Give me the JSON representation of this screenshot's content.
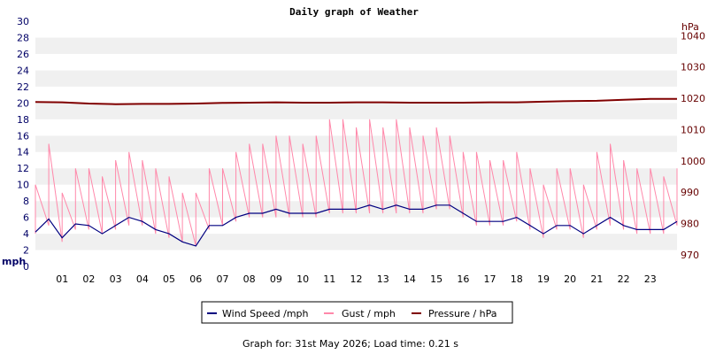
{
  "chart_data": {
    "type": "line",
    "title": "Daily graph of Weather",
    "left_axis": {
      "unit_label": "mph",
      "ylim": [
        0,
        30
      ],
      "ticks": [
        "0",
        "2",
        "4",
        "6",
        "8",
        "10",
        "12",
        "14",
        "16",
        "18",
        "20",
        "22",
        "24",
        "26",
        "28",
        "30"
      ]
    },
    "right_axis": {
      "unit_label": "hPa",
      "ylim": [
        966.3,
        1044.6
      ],
      "ticks": [
        "970",
        "980",
        "990",
        "1000",
        "1010",
        "1020",
        "1030",
        "1040"
      ]
    },
    "x_axis": {
      "xlim": [
        0,
        24
      ],
      "tick_labels": [
        "01",
        "02",
        "03",
        "04",
        "05",
        "06",
        "07",
        "08",
        "09",
        "10",
        "11",
        "12",
        "13",
        "14",
        "15",
        "16",
        "17",
        "18",
        "19",
        "20",
        "21",
        "22",
        "23"
      ]
    },
    "grid": "alternating horizontal bands",
    "legend_position": "bottom-center",
    "series": [
      {
        "name": "Wind Speed /mph",
        "axis": "left",
        "color": "#000080",
        "x": [
          0,
          0.5,
          1,
          1.5,
          2,
          2.5,
          3,
          3.5,
          4,
          4.5,
          5,
          5.5,
          6,
          6.5,
          7,
          7.5,
          8,
          8.5,
          9,
          9.5,
          10,
          10.5,
          11,
          11.5,
          12,
          12.5,
          13,
          13.5,
          14,
          14.5,
          15,
          15.5,
          16,
          16.5,
          17,
          17.5,
          18,
          18.5,
          19,
          19.5,
          20,
          20.5,
          21,
          21.5,
          22,
          22.5,
          23,
          23.5,
          24
        ],
        "y": [
          4.2,
          5.8,
          3.5,
          5.2,
          5.0,
          4.0,
          5.0,
          6.0,
          5.5,
          4.5,
          4.0,
          3.0,
          2.5,
          5.0,
          5.0,
          6.0,
          6.5,
          6.5,
          7.0,
          6.5,
          6.5,
          6.5,
          7.0,
          7.0,
          7.0,
          7.5,
          7.0,
          7.5,
          7.0,
          7.0,
          7.5,
          7.5,
          6.5,
          5.5,
          5.5,
          5.5,
          6.0,
          5.0,
          4.0,
          5.0,
          5.0,
          4.0,
          5.0,
          6.0,
          5.0,
          4.5,
          4.5,
          4.5,
          5.5
        ]
      },
      {
        "name": "Gust / mph",
        "axis": "left",
        "color": "#ff88aa",
        "x": [
          0,
          0.5,
          1,
          1.5,
          2,
          2.5,
          3,
          3.5,
          4,
          4.5,
          5,
          5.5,
          6,
          6.5,
          7,
          7.5,
          8,
          8.5,
          9,
          9.5,
          10,
          10.5,
          11,
          11.5,
          12,
          12.5,
          13,
          13.5,
          14,
          14.5,
          15,
          15.5,
          16,
          16.5,
          17,
          17.5,
          18,
          18.5,
          19,
          19.5,
          20,
          20.5,
          21,
          21.5,
          22,
          22.5,
          23,
          23.5,
          24
        ],
        "y_min": [
          4.0,
          5.0,
          3.0,
          4.5,
          4.5,
          4.0,
          4.5,
          5.0,
          5.0,
          4.0,
          3.5,
          3.0,
          2.5,
          4.5,
          5.0,
          5.5,
          6.0,
          6.0,
          6.0,
          6.0,
          6.0,
          6.0,
          6.5,
          6.5,
          6.5,
          6.5,
          6.5,
          6.5,
          6.5,
          6.5,
          7.0,
          7.0,
          6.0,
          5.0,
          5.0,
          5.0,
          5.5,
          4.5,
          3.5,
          4.5,
          4.5,
          3.5,
          4.5,
          5.0,
          4.5,
          4.0,
          4.0,
          4.0,
          5.0
        ],
        "y_max": [
          10.0,
          15.0,
          9.0,
          12.0,
          12.0,
          11.0,
          13.0,
          14.0,
          13.0,
          12.0,
          11.0,
          9.0,
          9.0,
          12.0,
          12.0,
          14.0,
          15.0,
          15.0,
          16.0,
          16.0,
          15.0,
          16.0,
          18.0,
          18.0,
          17.0,
          18.0,
          17.0,
          18.0,
          17.0,
          16.0,
          17.0,
          16.0,
          14.0,
          14.0,
          13.0,
          13.0,
          14.0,
          12.0,
          10.0,
          12.0,
          12.0,
          10.0,
          14.0,
          15.0,
          13.0,
          12.0,
          12.0,
          11.0,
          12.0
        ]
      },
      {
        "name": "Pressure / hPa",
        "axis": "right",
        "color": "#800000",
        "x": [
          0,
          1,
          2,
          3,
          4,
          5,
          6,
          7,
          8,
          9,
          10,
          11,
          12,
          13,
          14,
          15,
          16,
          17,
          18,
          19,
          20,
          21,
          22,
          23,
          24
        ],
        "y": [
          1018.8,
          1018.7,
          1018.3,
          1018.1,
          1018.2,
          1018.2,
          1018.3,
          1018.5,
          1018.6,
          1018.7,
          1018.6,
          1018.6,
          1018.7,
          1018.7,
          1018.6,
          1018.6,
          1018.6,
          1018.7,
          1018.7,
          1018.9,
          1019.1,
          1019.2,
          1019.5,
          1019.8,
          1019.8
        ]
      }
    ],
    "footer": "Graph for: 31st May 2026; Load time: 0.21 s"
  }
}
